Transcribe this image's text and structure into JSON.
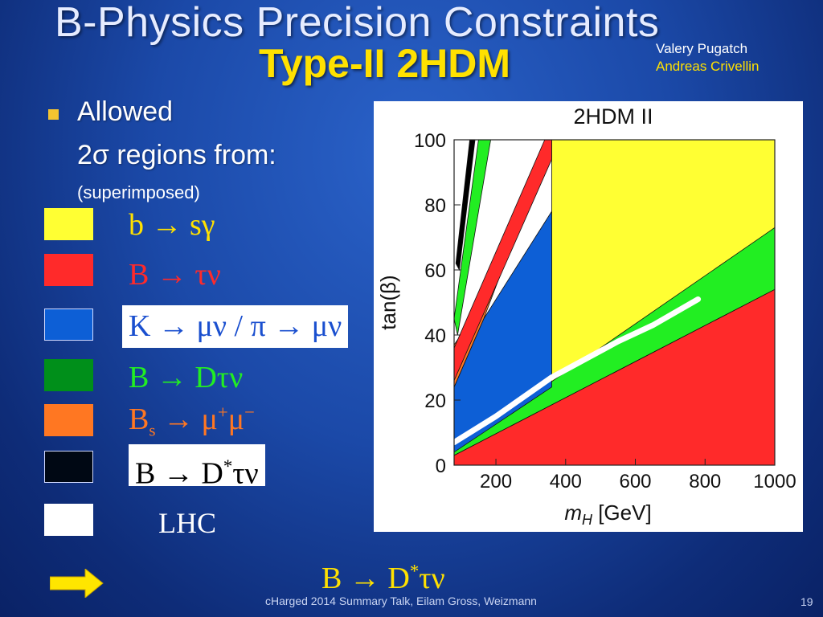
{
  "slide": {
    "title": "B-Physics Precision Constraints",
    "subtitle": "Type-II 2HDM",
    "author_line1": "Valery Pugatch",
    "author_line2": "Andreas Crivellin",
    "bullet_text": "Allowed",
    "regions_text": "2σ regions from:",
    "superimposed_text": "(superimposed)",
    "footer": "cHarged 2014 Summary Talk, Eilam Gross, Weizmann",
    "page_number": "19"
  },
  "legend": [
    {
      "swatch_color": "#ffff33",
      "text_color": "#ffe100",
      "boxed": false,
      "parts": {
        "a": "b",
        "arrow": " → ",
        "b": "sγ"
      }
    },
    {
      "swatch_color": "#ff2a2a",
      "text_color": "#ff2a2a",
      "boxed": false,
      "parts": {
        "a": "B",
        "arrow": " → ",
        "b": "τν"
      }
    },
    {
      "swatch_color": "#0d5fd6",
      "text_color": "#1a4fcf",
      "boxed": true,
      "parts": {
        "a": "K",
        "arrow": " → ",
        "b": "μν / π → μν"
      }
    },
    {
      "swatch_color": "#008f1a",
      "text_color": "#22ee22",
      "boxed": false,
      "parts": {
        "a": "B",
        "arrow": " → ",
        "b": "Dτν"
      }
    },
    {
      "swatch_color": "#ff7722",
      "text_color": "#ff7722",
      "boxed": false,
      "parts": {
        "a": "B",
        "sub": "s",
        "arrow": " → ",
        "b": "μ",
        "sup1": "+",
        "c": "μ",
        "sup2": "−"
      }
    },
    {
      "swatch_color": "#000814",
      "text_color": "#000000",
      "boxed": true,
      "parts": {
        "a": "B",
        "arrow": " → ",
        "b": "D",
        "sup1": "*",
        "c": "τν"
      }
    },
    {
      "swatch_color": "#ffffff",
      "text_color": "#ffffff",
      "boxed": false,
      "parts": {
        "a": "LHC"
      }
    }
  ],
  "bottom_highlight": {
    "a": "B",
    "arrow": " → ",
    "b": "D",
    "sup": "*",
    "c": "τν",
    "arrow_color": "#ffe600"
  },
  "chart_data": {
    "type": "area",
    "title": "2HDM II",
    "xlabel": "m_H [GeV]",
    "xlabel_base": "m",
    "xlabel_sub": "H",
    "xlabel_unit": " [GeV]",
    "ylabel": "tan(β)",
    "xlim": [
      80,
      1000
    ],
    "ylim": [
      0,
      100
    ],
    "x_ticks": [
      200,
      400,
      600,
      800,
      1000
    ],
    "y_ticks": [
      0,
      20,
      40,
      60,
      80,
      100
    ],
    "regions": [
      {
        "name": "b → sγ",
        "color": "#ffff33",
        "polygon": [
          [
            360,
            100
          ],
          [
            1000,
            100
          ],
          [
            1000,
            73
          ],
          [
            360,
            24
          ]
        ]
      },
      {
        "name": "B → Dτν",
        "color": "#22ee22",
        "polygon": [
          [
            80,
            5
          ],
          [
            1000,
            73
          ],
          [
            1000,
            54
          ],
          [
            80,
            3
          ]
        ]
      },
      {
        "name": "B → τν",
        "color": "#ff2a2a",
        "polygon": [
          [
            80,
            3
          ],
          [
            1000,
            54
          ],
          [
            1000,
            0
          ],
          [
            80,
            0
          ]
        ]
      },
      {
        "name": "K → μν / π → μν",
        "color": "#0d5fd6",
        "polygon": [
          [
            80,
            4
          ],
          [
            80,
            24
          ],
          [
            165,
            45
          ],
          [
            360,
            78
          ],
          [
            360,
            24
          ]
        ]
      },
      {
        "name": "Bs → μ+μ−",
        "color": "#ff7722",
        "polygon": [
          [
            80,
            24
          ],
          [
            80,
            37
          ],
          [
            165,
            50
          ],
          [
            225,
            62
          ],
          [
            165,
            45
          ]
        ]
      },
      {
        "name": "B → Dτν",
        "color": "#22ee22",
        "polygon": [
          [
            80,
            45
          ],
          [
            150,
            100
          ],
          [
            185,
            100
          ],
          [
            90,
            40
          ]
        ]
      },
      {
        "name": "B → τν",
        "color": "#ff2a2a",
        "polygon": [
          [
            80,
            26
          ],
          [
            80,
            36
          ],
          [
            340,
            100
          ],
          [
            360,
            100
          ],
          [
            360,
            94
          ]
        ]
      },
      {
        "name": "B → D*τν",
        "color": "#000000",
        "polygon": [
          [
            85,
            62
          ],
          [
            125,
            100
          ],
          [
            140,
            100
          ],
          [
            95,
            60
          ]
        ]
      }
    ],
    "lhc_curve": {
      "name": "LHC",
      "color": "#ffffff",
      "points": [
        [
          80,
          7
        ],
        [
          200,
          15
        ],
        [
          360,
          27
        ],
        [
          550,
          38
        ],
        [
          650,
          43
        ],
        [
          780,
          51
        ]
      ]
    }
  }
}
